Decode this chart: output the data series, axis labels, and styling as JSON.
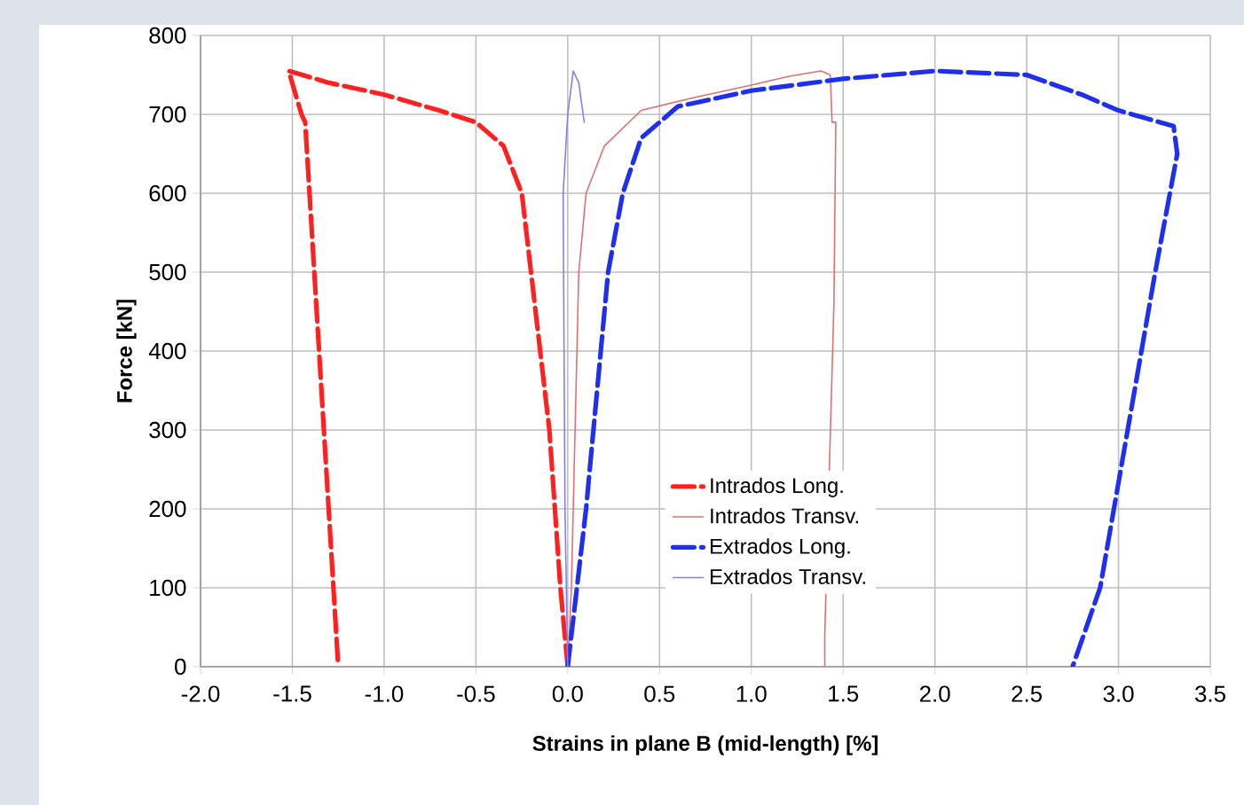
{
  "chart_data": {
    "type": "line",
    "xlabel": "Strains in plane B (mid-length) [%]",
    "ylabel": "Force  [kN]",
    "xlim": [
      -2,
      3.5
    ],
    "xticks": [
      {
        "value": -2,
        "label": "-2.0"
      },
      {
        "value": -1.5,
        "label": "-1.5"
      },
      {
        "value": -1,
        "label": "-1.0"
      },
      {
        "value": -0.5,
        "label": "-0.5"
      },
      {
        "value": 0,
        "label": "0.0"
      },
      {
        "value": 0.5,
        "label": "0.5"
      },
      {
        "value": 1,
        "label": "1.0"
      },
      {
        "value": 1.5,
        "label": "1.5"
      },
      {
        "value": 2,
        "label": "2.0"
      },
      {
        "value": 2.5,
        "label": "2.5"
      },
      {
        "value": 3,
        "label": "3.0"
      },
      {
        "value": 3.5,
        "label": "3.5"
      }
    ],
    "ylim": [
      0,
      800
    ],
    "yticks": [
      0,
      100,
      200,
      300,
      400,
      500,
      600,
      700,
      800
    ],
    "grid": true,
    "legend": "bottom right",
    "marker": "none",
    "series": [
      {
        "name": "Intrados Long.",
        "color": "#ff2020",
        "line_style": "dashed",
        "x": [
          0,
          -0.04,
          -0.07,
          -0.1,
          -0.15,
          -0.2,
          -0.25,
          -0.35,
          -0.5,
          -0.7,
          -1.0,
          -1.3,
          -1.52,
          -1.45,
          -1.43,
          -1.25
        ],
        "values": [
          0,
          100,
          200,
          300,
          400,
          500,
          600,
          660,
          690,
          705,
          725,
          740,
          755,
          700,
          690,
          0
        ]
      },
      {
        "name": "Intrados Transv.",
        "color": "#e07070",
        "line_style": "solid",
        "x": [
          0,
          0.02,
          0.04,
          0.06,
          0.1,
          0.2,
          0.4,
          0.7,
          1.0,
          1.2,
          1.38,
          1.43,
          1.44,
          1.46,
          1.45,
          1.4,
          1.4
        ],
        "values": [
          0,
          100,
          300,
          500,
          600,
          660,
          705,
          722,
          737,
          748,
          755,
          750,
          690,
          690,
          460,
          40,
          0
        ]
      },
      {
        "name": "Extrados Long.",
        "color": "#1f2ff0",
        "line_style": "dashed",
        "x": [
          0,
          0.05,
          0.1,
          0.14,
          0.18,
          0.22,
          0.3,
          0.4,
          0.6,
          1.0,
          1.5,
          2.0,
          2.5,
          2.8,
          3.0,
          3.3,
          3.32,
          3.2,
          3.05,
          2.9,
          2.75
        ],
        "values": [
          0,
          100,
          200,
          300,
          400,
          500,
          600,
          670,
          710,
          730,
          745,
          755,
          750,
          725,
          705,
          685,
          650,
          500,
          300,
          100,
          0
        ]
      },
      {
        "name": "Extrados Transv.",
        "color": "#8080f0",
        "line_style": "solid",
        "x": [
          0,
          -0.015,
          -0.025,
          0,
          0.03,
          0.06,
          0.09
        ],
        "values": [
          0,
          200,
          600,
          700,
          755,
          740,
          690
        ]
      }
    ]
  }
}
